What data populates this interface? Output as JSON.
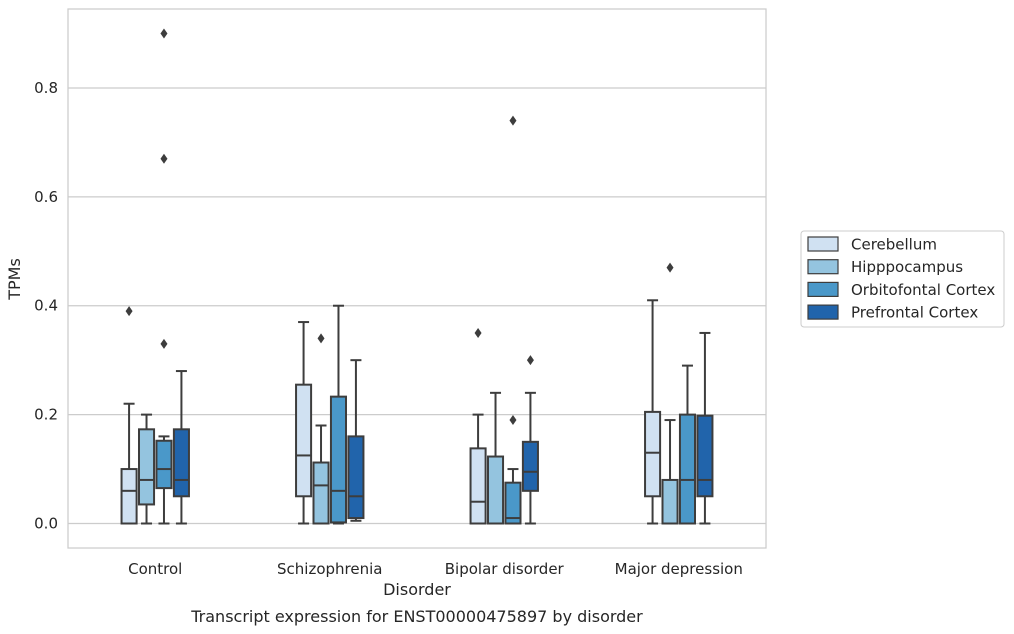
{
  "chart_data": {
    "type": "box",
    "xlabel": "Disorder",
    "ylabel": "TPMs",
    "caption": "Transcript expression for ENST00000475897 by disorder",
    "ylim": [
      -0.045,
      0.945
    ],
    "yticks": [
      0.0,
      0.2,
      0.4,
      0.6,
      0.8
    ],
    "ytick_labels": [
      "0.0",
      "0.2",
      "0.4",
      "0.6",
      "0.8"
    ],
    "grid": "horizontal",
    "legend_position": "right-center",
    "categories": [
      "Control",
      "Schizophrenia",
      "Bipolar disorder",
      "Major depression"
    ],
    "series": [
      {
        "name": "Cerebellum",
        "color": "#d0e1f2",
        "boxes": [
          {
            "whisker_low": 0.0,
            "q1": 0.0,
            "median": 0.06,
            "q3": 0.1,
            "whisker_high": 0.22,
            "outliers": [
              0.39
            ]
          },
          {
            "whisker_low": 0.0,
            "q1": 0.05,
            "median": 0.125,
            "q3": 0.255,
            "whisker_high": 0.37,
            "outliers": []
          },
          {
            "whisker_low": 0.0,
            "q1": 0.0,
            "median": 0.04,
            "q3": 0.138,
            "whisker_high": 0.2,
            "outliers": [
              0.35
            ]
          },
          {
            "whisker_low": 0.0,
            "q1": 0.05,
            "median": 0.13,
            "q3": 0.205,
            "whisker_high": 0.41,
            "outliers": []
          }
        ]
      },
      {
        "name": "Hipppocampus",
        "color": "#94c4df",
        "boxes": [
          {
            "whisker_low": 0.0,
            "q1": 0.035,
            "median": 0.08,
            "q3": 0.173,
            "whisker_high": 0.2,
            "outliers": []
          },
          {
            "whisker_low": 0.0,
            "q1": 0.0,
            "median": 0.07,
            "q3": 0.112,
            "whisker_high": 0.18,
            "outliers": [
              0.34
            ]
          },
          {
            "whisker_low": 0.0,
            "q1": 0.0,
            "median": 0.0,
            "q3": 0.123,
            "whisker_high": 0.24,
            "outliers": []
          },
          {
            "whisker_low": 0.0,
            "q1": 0.0,
            "median": 0.0,
            "q3": 0.08,
            "whisker_high": 0.19,
            "outliers": [
              0.47
            ]
          }
        ]
      },
      {
        "name": "Orbitofontal Cortex",
        "color": "#4a98c9",
        "boxes": [
          {
            "whisker_low": 0.0,
            "q1": 0.065,
            "median": 0.1,
            "q3": 0.152,
            "whisker_high": 0.16,
            "outliers": [
              0.33,
              0.67,
              0.9
            ]
          },
          {
            "whisker_low": 0.0,
            "q1": 0.002,
            "median": 0.06,
            "q3": 0.233,
            "whisker_high": 0.4,
            "outliers": []
          },
          {
            "whisker_low": 0.0,
            "q1": 0.0,
            "median": 0.01,
            "q3": 0.075,
            "whisker_high": 0.1,
            "outliers": [
              0.19,
              0.74
            ]
          },
          {
            "whisker_low": 0.0,
            "q1": 0.0,
            "median": 0.08,
            "q3": 0.2,
            "whisker_high": 0.29,
            "outliers": []
          }
        ]
      },
      {
        "name": "Prefrontal Cortex",
        "color": "#2164ab",
        "boxes": [
          {
            "whisker_low": 0.0,
            "q1": 0.05,
            "median": 0.08,
            "q3": 0.173,
            "whisker_high": 0.28,
            "outliers": []
          },
          {
            "whisker_low": 0.005,
            "q1": 0.01,
            "median": 0.05,
            "q3": 0.16,
            "whisker_high": 0.3,
            "outliers": []
          },
          {
            "whisker_low": 0.0,
            "q1": 0.06,
            "median": 0.095,
            "q3": 0.15,
            "whisker_high": 0.24,
            "outliers": [
              0.3
            ]
          },
          {
            "whisker_low": 0.0,
            "q1": 0.05,
            "median": 0.08,
            "q3": 0.198,
            "whisker_high": 0.35,
            "outliers": []
          }
        ]
      }
    ]
  }
}
